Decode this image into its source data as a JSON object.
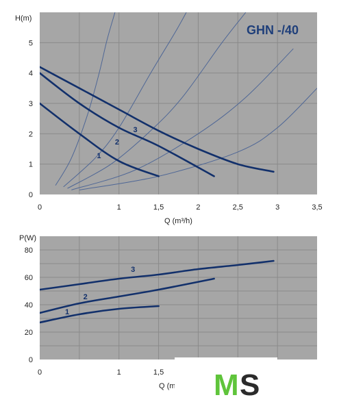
{
  "chart_data": [
    {
      "type": "line",
      "title": "GHN -/40",
      "ylabel": "H(m)",
      "xlabel": "Q (m³/h)",
      "xlim": [
        0,
        3.5
      ],
      "ylim": [
        0,
        6
      ],
      "x_ticks": [
        "0",
        "1",
        "1,5",
        "2",
        "2,5",
        "3",
        "3,5"
      ],
      "x_tick_values": [
        0,
        1,
        1.5,
        2,
        2.5,
        3,
        3.5
      ],
      "y_ticks": [
        "0",
        "1",
        "2",
        "3",
        "4",
        "5"
      ],
      "y_tick_values": [
        0,
        1,
        2,
        3,
        4,
        5
      ],
      "grid": true,
      "series": [
        {
          "name": "1",
          "points": [
            [
              0,
              3.0
            ],
            [
              0.5,
              2.0
            ],
            [
              1.0,
              1.1
            ],
            [
              1.5,
              0.6
            ]
          ]
        },
        {
          "name": "2",
          "points": [
            [
              0,
              4.0
            ],
            [
              0.5,
              3.0
            ],
            [
              1.0,
              2.2
            ],
            [
              1.5,
              1.6
            ],
            [
              2.2,
              0.6
            ]
          ]
        },
        {
          "name": "3",
          "points": [
            [
              0,
              4.2
            ],
            [
              0.5,
              3.5
            ],
            [
              1.0,
              2.8
            ],
            [
              1.5,
              2.1
            ],
            [
              2.0,
              1.5
            ],
            [
              2.5,
              1.0
            ],
            [
              2.95,
              0.75
            ]
          ]
        }
      ],
      "system_curves": [
        {
          "points": [
            [
              0.2,
              0.3
            ],
            [
              0.4,
              1.2
            ],
            [
              0.6,
              2.6
            ],
            [
              0.75,
              4.0
            ],
            [
              0.85,
              5.1
            ],
            [
              0.95,
              6.0
            ]
          ]
        },
        {
          "points": [
            [
              0.3,
              0.25
            ],
            [
              0.7,
              1.2
            ],
            [
              1.0,
              2.2
            ],
            [
              1.4,
              4.0
            ],
            [
              1.7,
              5.3
            ],
            [
              1.85,
              6.0
            ]
          ]
        },
        {
          "points": [
            [
              0.35,
              0.2
            ],
            [
              0.9,
              1.0
            ],
            [
              1.4,
              2.1
            ],
            [
              1.8,
              3.2
            ],
            [
              2.3,
              5.0
            ],
            [
              2.6,
              6.0
            ]
          ]
        },
        {
          "points": [
            [
              0.4,
              0.15
            ],
            [
              1.2,
              0.8
            ],
            [
              2.0,
              2.0
            ],
            [
              2.6,
              3.2
            ],
            [
              3.2,
              4.8
            ]
          ]
        },
        {
          "points": [
            [
              0.5,
              0.15
            ],
            [
              1.5,
              0.6
            ],
            [
              2.5,
              1.4
            ],
            [
              3.0,
              2.2
            ],
            [
              3.5,
              3.5
            ]
          ]
        }
      ]
    },
    {
      "type": "line",
      "ylabel": "P(W)",
      "xlabel": "Q (m",
      "xlim": [
        0,
        3.5
      ],
      "ylim": [
        0,
        90
      ],
      "x_ticks": [
        "0",
        "1",
        "1,5"
      ],
      "x_tick_values": [
        0,
        1,
        1.5
      ],
      "y_ticks": [
        "0",
        "20",
        "40",
        "60",
        "80"
      ],
      "y_tick_values": [
        0,
        20,
        40,
        60,
        80
      ],
      "grid": true,
      "series": [
        {
          "name": "1",
          "points": [
            [
              0,
              27
            ],
            [
              0.5,
              33
            ],
            [
              1.0,
              37
            ],
            [
              1.5,
              39
            ]
          ]
        },
        {
          "name": "2",
          "points": [
            [
              0,
              34
            ],
            [
              0.5,
              41
            ],
            [
              1.0,
              46
            ],
            [
              1.5,
              51
            ],
            [
              2.2,
              59
            ]
          ]
        },
        {
          "name": "3",
          "points": [
            [
              0,
              51
            ],
            [
              0.5,
              55
            ],
            [
              1.0,
              59
            ],
            [
              1.5,
              62
            ],
            [
              2.0,
              66
            ],
            [
              2.5,
              69
            ],
            [
              2.95,
              72
            ]
          ]
        }
      ]
    }
  ],
  "logo": {
    "m": "M",
    "s": "S"
  },
  "colors": {
    "plot_bg": "#a6a6a6",
    "grid": "#8a8a8a",
    "curve": "#12306b",
    "system_curve": "#4f6796",
    "logo_green": "#5fc43b"
  }
}
